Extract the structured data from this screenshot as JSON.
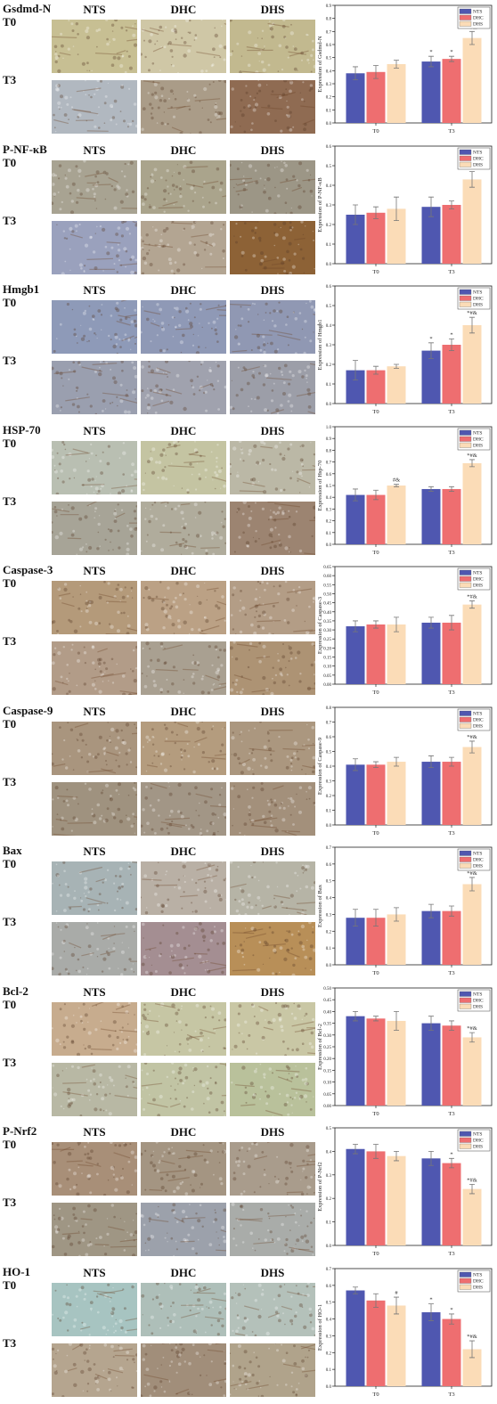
{
  "column_headers": [
    "NTS",
    "DHC",
    "DHS"
  ],
  "row_labels": [
    "T0",
    "T3"
  ],
  "colors": {
    "NTS": "#4f57b0",
    "DHC": "#ee6e70",
    "DHS": "#fbdcb7"
  },
  "panels": [
    {
      "marker": "Gsdmd-N",
      "stains": [
        "#c7bf93",
        "#cfc7a6",
        "#c2b98f",
        "#b1b8c0",
        "#aa9c88",
        "#8f6b52"
      ],
      "chart_data": {
        "type": "bar",
        "categories": [
          "T0",
          "T3"
        ],
        "series": [
          {
            "name": "NTS",
            "values": [
              0.38,
              0.47
            ],
            "errors": [
              0.05,
              0.04
            ],
            "marks": [
              "",
              ""
            ]
          },
          {
            "name": "DHC",
            "values": [
              0.39,
              0.49
            ],
            "errors": [
              0.05,
              0.02
            ],
            "marks": [
              "",
              "*"
            ]
          },
          {
            "name": "DHS",
            "values": [
              0.45,
              0.65
            ],
            "errors": [
              0.03,
              0.05
            ],
            "marks": [
              "",
              "*#&"
            ]
          }
        ],
        "ylabel": "Expression of Gsdmd-N",
        "ylim": [
          0,
          0.9
        ],
        "ticks": [
          "0.0",
          "0.1",
          "0.2",
          "0.3",
          "0.4",
          "0.5",
          "0.6",
          "0.7",
          "0.8",
          "0.9"
        ],
        "t3_nts_mark": "*",
        "legend_position": "top-right"
      }
    },
    {
      "marker": "P-NF-κB",
      "stains": [
        "#a8a392",
        "#aaa48c",
        "#9c9686",
        "#9aa1bd",
        "#b3a592",
        "#8d6236"
      ],
      "chart_data": {
        "type": "bar",
        "categories": [
          "T0",
          "T3"
        ],
        "series": [
          {
            "name": "NTS",
            "values": [
              0.25,
              0.29
            ],
            "errors": [
              0.05,
              0.05
            ],
            "marks": [
              "",
              ""
            ]
          },
          {
            "name": "DHC",
            "values": [
              0.26,
              0.3
            ],
            "errors": [
              0.03,
              0.02
            ],
            "marks": [
              "",
              ""
            ]
          },
          {
            "name": "DHS",
            "values": [
              0.28,
              0.43
            ],
            "errors": [
              0.06,
              0.04
            ],
            "marks": [
              "",
              "*#&"
            ]
          }
        ],
        "ylabel": "Expression of P-NF-κB",
        "ylim": [
          0,
          0.6
        ],
        "ticks": [
          "0.0",
          "0.1",
          "0.2",
          "0.3",
          "0.4",
          "0.5",
          "0.6"
        ],
        "t3_nts_mark": "",
        "legend_position": "top-right"
      }
    },
    {
      "marker": "Hmgb1",
      "stains": [
        "#8e9ab8",
        "#8f99b6",
        "#9098b3",
        "#9a9faf",
        "#a0a2ae",
        "#9c9ea8"
      ],
      "chart_data": {
        "type": "bar",
        "categories": [
          "T0",
          "T3"
        ],
        "series": [
          {
            "name": "NTS",
            "values": [
              0.17,
              0.27
            ],
            "errors": [
              0.05,
              0.04
            ],
            "marks": [
              "",
              ""
            ]
          },
          {
            "name": "DHC",
            "values": [
              0.17,
              0.3
            ],
            "errors": [
              0.02,
              0.03
            ],
            "marks": [
              "",
              "*"
            ]
          },
          {
            "name": "DHS",
            "values": [
              0.19,
              0.4
            ],
            "errors": [
              0.01,
              0.04
            ],
            "marks": [
              "",
              "*#&"
            ]
          }
        ],
        "ylabel": "Expression of Hmgb1",
        "ylim": [
          0,
          0.6
        ],
        "ticks": [
          "0.0",
          "0.1",
          "0.2",
          "0.3",
          "0.4",
          "0.5",
          "0.6"
        ],
        "t3_nts_mark": "*",
        "legend_position": "top-right"
      }
    },
    {
      "marker": "HSP-70",
      "stains": [
        "#b9bfb2",
        "#c4c4a2",
        "#bbb8a6",
        "#a7a497",
        "#b0ac9c",
        "#9c8471"
      ],
      "chart_data": {
        "type": "bar",
        "categories": [
          "T0",
          "T3"
        ],
        "series": [
          {
            "name": "NTS",
            "values": [
              0.42,
              0.47
            ],
            "errors": [
              0.05,
              0.02
            ],
            "marks": [
              "",
              ""
            ]
          },
          {
            "name": "DHC",
            "values": [
              0.42,
              0.47
            ],
            "errors": [
              0.04,
              0.02
            ],
            "marks": [
              "",
              ""
            ]
          },
          {
            "name": "DHS",
            "values": [
              0.5,
              0.69
            ],
            "errors": [
              0.01,
              0.03
            ],
            "marks": [
              "#&",
              "*#&"
            ]
          }
        ],
        "ylabel": "Expression of Hsp-70",
        "ylim": [
          0,
          1.0
        ],
        "ticks": [
          "0.0",
          "0.1",
          "0.2",
          "0.3",
          "0.4",
          "0.5",
          "0.6",
          "0.7",
          "0.8",
          "0.9",
          "1.0"
        ],
        "t3_nts_mark": "",
        "legend_position": "top-right"
      }
    },
    {
      "marker": "Caspase-3",
      "stains": [
        "#b49a7a",
        "#bba185",
        "#b39d86",
        "#b29c88",
        "#a9a091",
        "#ad9374"
      ],
      "chart_data": {
        "type": "bar",
        "categories": [
          "T0",
          "T3"
        ],
        "series": [
          {
            "name": "NTS",
            "values": [
              0.32,
              0.34
            ],
            "errors": [
              0.03,
              0.03
            ],
            "marks": [
              "",
              ""
            ]
          },
          {
            "name": "DHC",
            "values": [
              0.33,
              0.34
            ],
            "errors": [
              0.02,
              0.04
            ],
            "marks": [
              "",
              ""
            ]
          },
          {
            "name": "DHS",
            "values": [
              0.33,
              0.44
            ],
            "errors": [
              0.04,
              0.02
            ],
            "marks": [
              "",
              "*#&"
            ]
          }
        ],
        "ylabel": "Expression of Caspase-3",
        "ylim": [
          0,
          0.65
        ],
        "ticks": [
          "0.00",
          "0.05",
          "0.10",
          "0.15",
          "0.20",
          "0.25",
          "0.30",
          "0.35",
          "0.40",
          "0.45",
          "0.50",
          "0.55",
          "0.60",
          "0.65"
        ],
        "t3_nts_mark": "",
        "legend_position": "top-right"
      }
    },
    {
      "marker": "Caspase-9",
      "stains": [
        "#a9957e",
        "#b49c7e",
        "#ab977f",
        "#9f927f",
        "#a29686",
        "#a3907b"
      ],
      "chart_data": {
        "type": "bar",
        "categories": [
          "T0",
          "T3"
        ],
        "series": [
          {
            "name": "NTS",
            "values": [
              0.41,
              0.43
            ],
            "errors": [
              0.04,
              0.04
            ],
            "marks": [
              "",
              ""
            ]
          },
          {
            "name": "DHC",
            "values": [
              0.41,
              0.43
            ],
            "errors": [
              0.02,
              0.03
            ],
            "marks": [
              "",
              ""
            ]
          },
          {
            "name": "DHS",
            "values": [
              0.43,
              0.53
            ],
            "errors": [
              0.03,
              0.04
            ],
            "marks": [
              "",
              "*#&"
            ]
          }
        ],
        "ylabel": "Expression of Caspase-9",
        "ylim": [
          0,
          0.8
        ],
        "ticks": [
          "0.0",
          "0.1",
          "0.2",
          "0.3",
          "0.4",
          "0.5",
          "0.6",
          "0.7",
          "0.8"
        ],
        "t3_nts_mark": "",
        "legend_position": "top-right"
      }
    },
    {
      "marker": "Bax",
      "stains": [
        "#a7b3b5",
        "#b9b0a5",
        "#b6b4a6",
        "#a9aba8",
        "#a48e92",
        "#b88f58"
      ],
      "chart_data": {
        "type": "bar",
        "categories": [
          "T0",
          "T3"
        ],
        "series": [
          {
            "name": "NTS",
            "values": [
              0.28,
              0.32
            ],
            "errors": [
              0.05,
              0.04
            ],
            "marks": [
              "",
              ""
            ]
          },
          {
            "name": "DHC",
            "values": [
              0.28,
              0.32
            ],
            "errors": [
              0.05,
              0.03
            ],
            "marks": [
              "",
              ""
            ]
          },
          {
            "name": "DHS",
            "values": [
              0.3,
              0.48
            ],
            "errors": [
              0.04,
              0.04
            ],
            "marks": [
              "",
              "*#&"
            ]
          }
        ],
        "ylabel": "Expression of Bax",
        "ylim": [
          0,
          0.7
        ],
        "ticks": [
          "0.0",
          "0.1",
          "0.2",
          "0.3",
          "0.4",
          "0.5",
          "0.6",
          "0.7"
        ],
        "t3_nts_mark": "",
        "legend_position": "top-right"
      }
    },
    {
      "marker": "Bcl-2",
      "stains": [
        "#c7ac8e",
        "#c6c6a4",
        "#c9c7a5",
        "#b8b8a4",
        "#c1c4a4",
        "#b9c19b"
      ],
      "chart_data": {
        "type": "bar",
        "categories": [
          "T0",
          "T3"
        ],
        "series": [
          {
            "name": "NTS",
            "values": [
              0.38,
              0.35
            ],
            "errors": [
              0.02,
              0.03
            ],
            "marks": [
              "",
              ""
            ]
          },
          {
            "name": "DHC",
            "values": [
              0.37,
              0.34
            ],
            "errors": [
              0.01,
              0.02
            ],
            "marks": [
              "",
              ""
            ]
          },
          {
            "name": "DHS",
            "values": [
              0.36,
              0.29
            ],
            "errors": [
              0.04,
              0.02
            ],
            "marks": [
              "",
              "*#&"
            ]
          }
        ],
        "ylabel": "Expression of Bcl-2",
        "ylim": [
          0,
          0.5
        ],
        "ticks": [
          "0.00",
          "0.05",
          "0.10",
          "0.15",
          "0.20",
          "0.25",
          "0.30",
          "0.35",
          "0.40",
          "0.45",
          "0.50"
        ],
        "t3_nts_mark": "",
        "legend_position": "top-right"
      }
    },
    {
      "marker": "P-Nrf2",
      "stains": [
        "#a88f78",
        "#a49582",
        "#a99c8c",
        "#9f9684",
        "#9ca1ab",
        "#a9aca9"
      ],
      "chart_data": {
        "type": "bar",
        "categories": [
          "T0",
          "T3"
        ],
        "series": [
          {
            "name": "NTS",
            "values": [
              0.41,
              0.37
            ],
            "errors": [
              0.02,
              0.03
            ],
            "marks": [
              "",
              ""
            ]
          },
          {
            "name": "DHC",
            "values": [
              0.4,
              0.35
            ],
            "errors": [
              0.03,
              0.02
            ],
            "marks": [
              "",
              "*"
            ]
          },
          {
            "name": "DHS",
            "values": [
              0.38,
              0.24
            ],
            "errors": [
              0.02,
              0.02
            ],
            "marks": [
              "",
              "*#&"
            ]
          }
        ],
        "ylabel": "Expression of P-Nrf2",
        "ylim": [
          0,
          0.5
        ],
        "ticks": [
          "0.0",
          "0.1",
          "0.2",
          "0.3",
          "0.4",
          "0.5"
        ],
        "t3_nts_mark": "",
        "legend_position": "top-right"
      }
    },
    {
      "marker": "HO-1",
      "stains": [
        "#a7c4c1",
        "#aebfb9",
        "#b4c1ba",
        "#b5a58f",
        "#a18e7a",
        "#b0a38b"
      ],
      "chart_data": {
        "type": "bar",
        "categories": [
          "T0",
          "T3"
        ],
        "series": [
          {
            "name": "NTS",
            "values": [
              0.57,
              0.44
            ],
            "errors": [
              0.02,
              0.05
            ],
            "marks": [
              "",
              ""
            ]
          },
          {
            "name": "DHC",
            "values": [
              0.51,
              0.4
            ],
            "errors": [
              0.04,
              0.03
            ],
            "marks": [
              "",
              "*"
            ]
          },
          {
            "name": "DHS",
            "values": [
              0.48,
              0.22
            ],
            "errors": [
              0.05,
              0.05
            ],
            "marks": [
              "#",
              "*#&"
            ]
          }
        ],
        "ylabel": "Expression of HO-1",
        "ylim": [
          0,
          0.7
        ],
        "ticks": [
          "0.0",
          "0.1",
          "0.2",
          "0.3",
          "0.4",
          "0.5",
          "0.6",
          "0.7"
        ],
        "t3_nts_mark": "*",
        "legend_position": "top-right"
      }
    }
  ]
}
